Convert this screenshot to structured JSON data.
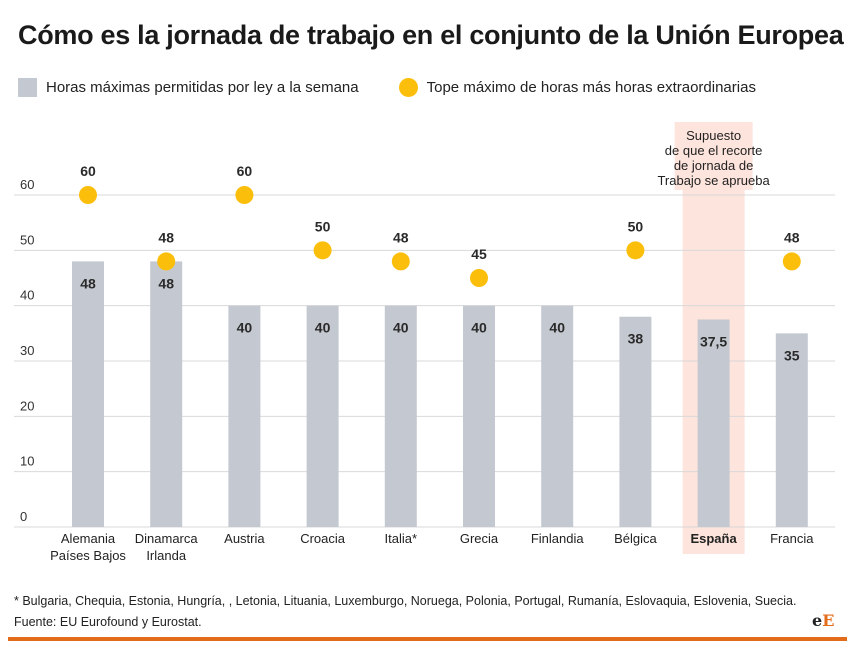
{
  "title": "Cómo es la jornada de trabajo en el conjunto de la Unión Europea",
  "legend": {
    "bars_label": "Horas máximas permitidas por ley a la semana",
    "dots_label": "Tope máximo de horas más horas extraordinarias"
  },
  "highlight_note": [
    "Supuesto",
    "de que el recorte",
    "de jornada de",
    "Trabajo se aprueba"
  ],
  "chart_data": {
    "type": "bar",
    "title": "Cómo es la jornada de trabajo en el conjunto de la Unión Europea",
    "xlabel": "",
    "ylabel": "",
    "ylim": [
      0,
      60
    ],
    "yticks": [
      0,
      10,
      20,
      30,
      40,
      50,
      60
    ],
    "grid": true,
    "categories": [
      [
        "Alemania",
        "Países Bajos"
      ],
      [
        "Dinamarca",
        "Irlanda"
      ],
      [
        "Austria"
      ],
      [
        "Croacia"
      ],
      [
        "Italia*"
      ],
      [
        "Grecia"
      ],
      [
        "Finlandia"
      ],
      [
        "Bélgica"
      ],
      [
        "España"
      ],
      [
        "Francia"
      ]
    ],
    "highlight_category": "España",
    "series": [
      {
        "name": "Horas máximas permitidas por ley a la semana",
        "type": "bar",
        "values": [
          48,
          48,
          40,
          40,
          40,
          40,
          40,
          38,
          37.5,
          35
        ],
        "labels": [
          "48",
          "48",
          "40",
          "40",
          "40",
          "40",
          "40",
          "38",
          "37,5",
          "35"
        ],
        "color": "#c4c9d1"
      },
      {
        "name": "Tope máximo de horas más horas extraordinarias",
        "type": "scatter",
        "values": [
          60,
          48,
          60,
          50,
          48,
          45,
          null,
          50,
          null,
          48
        ],
        "labels": [
          "60",
          "48",
          "60",
          "50",
          "48",
          "45",
          null,
          "50",
          null,
          "48"
        ],
        "color": "#fbbf0b"
      }
    ]
  },
  "footnote": "* Bulgaria, Chequia, Estonia, Hungría, , Letonia, Lituania, Luxemburgo, Noruega, Polonia, Portugal, Rumanía, Eslovaquia, Eslovenia, Suecia.",
  "source": "Fuente: EU Eurofound y Eurostat.",
  "logo": {
    "part1": "e",
    "part2": "E"
  },
  "colors": {
    "bar": "#c4c9d1",
    "dot": "#fbbf0b",
    "highlight_bg": "#fde4dc",
    "accent": "#e36c1a",
    "grid": "#d9d9d9"
  }
}
